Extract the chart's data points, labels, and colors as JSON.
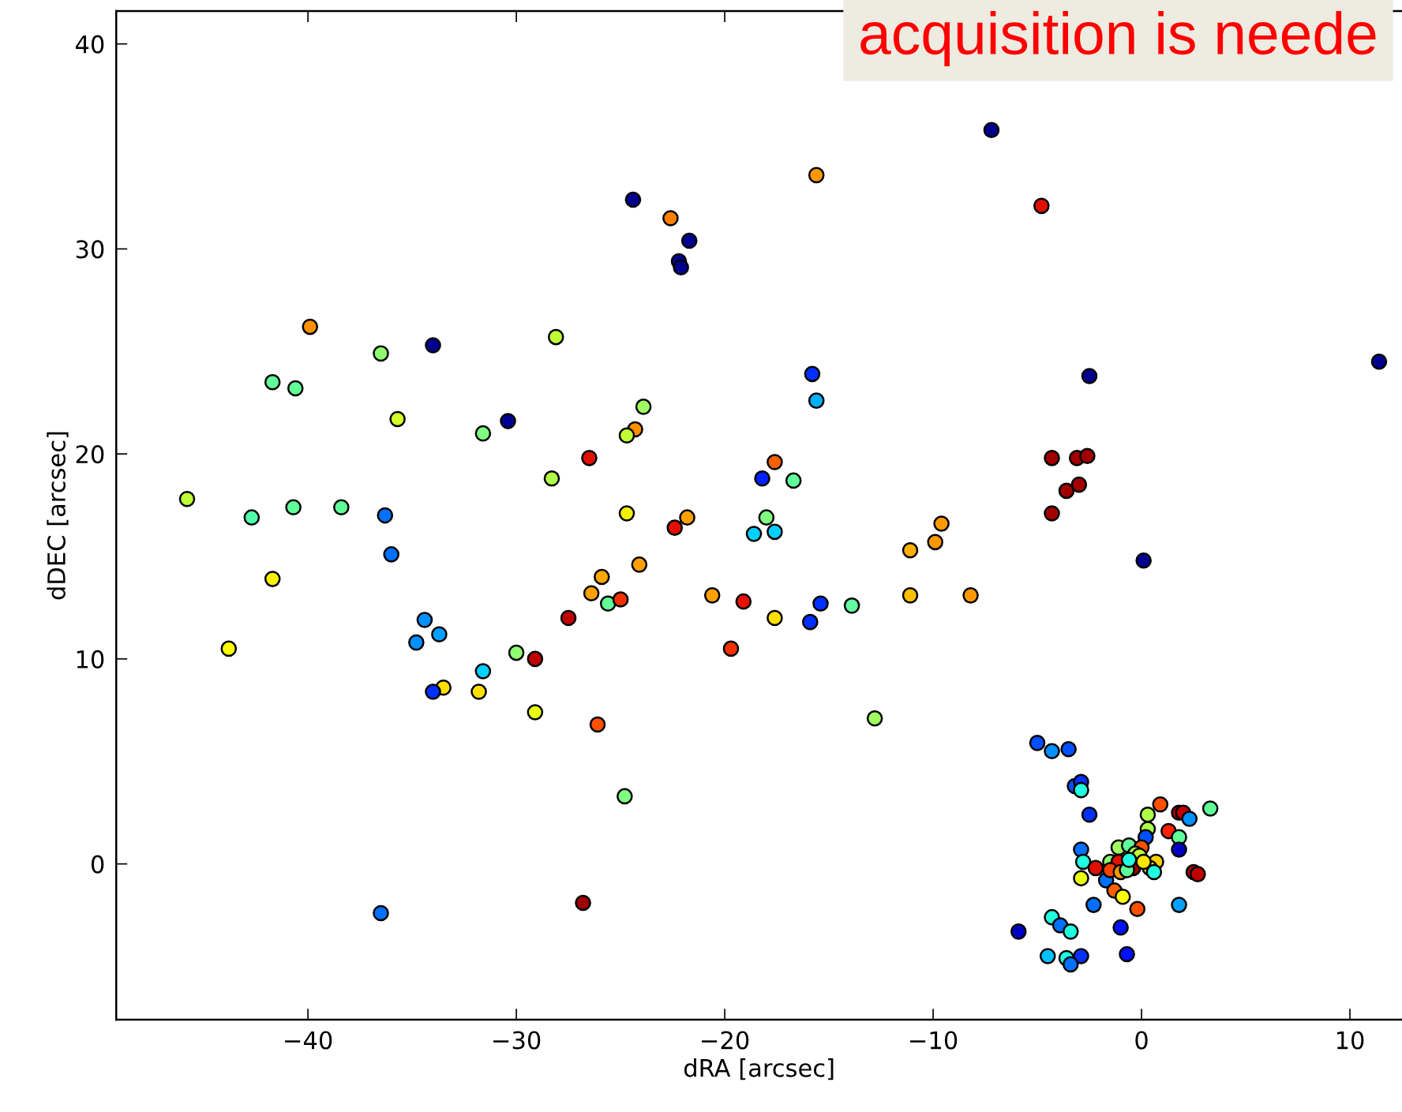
{
  "chart_data": {
    "type": "scatter",
    "xlabel": "dRA [arcsec]",
    "ylabel": "dDEC [arcsec]",
    "annotations": [
      "acquisition is neede"
    ],
    "xlim": [
      -49.2,
      12.5
    ],
    "ylim": [
      -7.6,
      41.6
    ],
    "xticks": [
      -40,
      -30,
      -20,
      -10,
      0,
      10
    ],
    "yticks": [
      0,
      10,
      20,
      30,
      40
    ],
    "grid": false,
    "legend": false,
    "marker": "circle",
    "series": [
      {
        "x": [
          -7.2,
          -15.6,
          -24.4,
          -22.6,
          -4.8,
          -21.7,
          -22.2,
          -22.1,
          -39.9,
          -28.1,
          -36.5,
          -34.0,
          -41.7,
          -40.6,
          -15.8,
          -15.6,
          -2.5,
          11.4,
          -35.7,
          -30.4,
          -31.6,
          -23.9,
          -24.3,
          -24.7,
          -26.5,
          -17.6,
          -18.2,
          -16.7,
          -4.3,
          -3.1,
          -2.6,
          -3.6,
          -3.0,
          -4.3,
          -45.8,
          -42.7,
          -40.7,
          -38.4,
          -36.3,
          -36.0,
          -28.3,
          -24.7,
          -22.4,
          -21.8,
          -18.0,
          -18.6,
          -17.6,
          -9.6,
          -11.1,
          -9.9,
          0.1,
          -41.7,
          -24.1,
          -25.9,
          -26.4,
          -25.6,
          -25.0,
          -27.5,
          -20.6,
          -19.1,
          -17.6,
          -15.4,
          -15.9,
          -13.9,
          -11.1,
          -8.2,
          -34.4,
          -34.8,
          -33.7,
          -43.8,
          -30.0,
          -29.1,
          -31.6,
          -33.5,
          -34.0,
          -31.8,
          -19.7,
          -29.1,
          -26.1,
          -12.8,
          -24.8,
          -36.5,
          -26.8,
          -5.0,
          -4.3,
          -3.5,
          -3.2,
          -2.9,
          -2.9,
          -2.5,
          0.9,
          0.3,
          0.3,
          0.2,
          1.8,
          2.0,
          2.3,
          3.3,
          1.3,
          1.8,
          1.8,
          -2.9,
          -2.8,
          -2.2,
          -2.9,
          -1.7,
          -1.3,
          -0.9,
          -0.2,
          -2.3,
          1.8,
          2.5,
          2.7,
          -1.0,
          -5.9,
          -4.3,
          -3.9,
          -3.4,
          -0.7,
          -4.5,
          -3.6,
          -2.9,
          -3.4,
          -1.1,
          -0.6,
          0.0,
          -0.3,
          -0.1,
          0.7,
          0.4,
          0.6,
          -1.5,
          -1.1,
          -1.5,
          -1.0,
          -0.4,
          -0.7,
          0.1,
          -0.6
        ],
        "values": [
          35.8,
          33.6,
          32.4,
          31.5,
          32.1,
          30.4,
          29.4,
          29.1,
          26.2,
          25.7,
          24.9,
          25.3,
          23.5,
          23.2,
          23.9,
          22.6,
          23.8,
          24.5,
          21.7,
          21.6,
          21.0,
          22.3,
          21.2,
          20.9,
          19.8,
          19.6,
          18.8,
          18.7,
          19.8,
          19.8,
          19.9,
          18.2,
          18.5,
          17.1,
          17.8,
          16.9,
          17.4,
          17.4,
          17.0,
          15.1,
          18.8,
          17.1,
          16.4,
          16.9,
          16.9,
          16.1,
          16.2,
          16.6,
          15.3,
          15.7,
          14.8,
          13.9,
          14.6,
          14.0,
          13.2,
          12.7,
          12.9,
          12.0,
          13.1,
          12.8,
          12.0,
          12.7,
          11.8,
          12.6,
          13.1,
          13.1,
          11.9,
          10.8,
          11.2,
          10.5,
          10.3,
          10.0,
          9.4,
          8.6,
          8.4,
          8.4,
          10.5,
          7.4,
          6.8,
          7.1,
          3.3,
          -2.4,
          -1.9,
          5.9,
          5.5,
          5.6,
          3.8,
          4.0,
          3.6,
          2.4,
          2.9,
          2.4,
          1.7,
          1.3,
          2.5,
          2.5,
          2.2,
          2.7,
          1.6,
          1.3,
          0.7,
          0.7,
          0.1,
          -0.2,
          -0.7,
          -0.8,
          -1.3,
          -1.6,
          -2.2,
          -2.0,
          -2.0,
          -0.4,
          -0.5,
          -3.1,
          -3.3,
          -2.6,
          -3.0,
          -3.3,
          -4.4,
          -4.5,
          -4.6,
          -4.5,
          -4.9,
          0.8,
          0.9,
          0.8,
          0.5,
          0.4,
          0.1,
          -0.2,
          -0.4,
          0.1,
          0.1,
          -0.3,
          -0.4,
          -0.2,
          -0.3,
          0.1,
          0.2
        ],
        "colors": [
          "#00008f",
          "#ff9800",
          "#00008f",
          "#ff8000",
          "#e01000",
          "#00008f",
          "#00008f",
          "#00008f",
          "#ff9000",
          "#c0ff36",
          "#90ff70",
          "#00008f",
          "#60ff98",
          "#60ff98",
          "#0030ff",
          "#00b0ff",
          "#00008f",
          "#00008f",
          "#d4ff2a",
          "#00008f",
          "#80ff80",
          "#a0ff60",
          "#ff9000",
          "#c0ff36",
          "#e01000",
          "#ff6000",
          "#0020ff",
          "#60ff98",
          "#a00000",
          "#a00000",
          "#a00000",
          "#a00000",
          "#a00000",
          "#a00000",
          "#c0ff36",
          "#50ffa8",
          "#60ff98",
          "#60ff98",
          "#0070ff",
          "#0070ff",
          "#b0ff48",
          "#f0f000",
          "#e01000",
          "#ffa000",
          "#80ff80",
          "#00d0ff",
          "#00d0ff",
          "#ff9800",
          "#ffb000",
          "#ff9800",
          "#00008f",
          "#f8f000",
          "#ffa000",
          "#ffa800",
          "#ffa000",
          "#60ff98",
          "#f03000",
          "#c00000",
          "#ffa000",
          "#e81000",
          "#ffe000",
          "#0030ff",
          "#0030ff",
          "#60ffa0",
          "#ffc000",
          "#ff9800",
          "#0090ff",
          "#0090ff",
          "#00a0ff",
          "#ffff00",
          "#90ff70",
          "#c00000",
          "#00d0ff",
          "#ffe000",
          "#0030ff",
          "#ffe000",
          "#f03000",
          "#e8ff10",
          "#ff5000",
          "#a0ff60",
          "#80ff80",
          "#0070ff",
          "#a00000",
          "#0050ff",
          "#0090ff",
          "#0050ff",
          "#0050ff",
          "#0030ff",
          "#20ffe0",
          "#0030ff",
          "#ff5000",
          "#b0ff48",
          "#b0ff48",
          "#0050ff",
          "#a00000",
          "#c00000",
          "#0090ff",
          "#60ff98",
          "#ff2000",
          "#60ff98",
          "#0000c0",
          "#0070ff",
          "#20ffe0",
          "#e01000",
          "#e8ff10",
          "#0070ff",
          "#ff6000",
          "#ffff00",
          "#ff5000",
          "#0070ff",
          "#00a0ff",
          "#a00000",
          "#c00000",
          "#0010ff",
          "#0000c0",
          "#20ffe0",
          "#0070ff",
          "#20ffe0",
          "#0010ff",
          "#00c0ff",
          "#20ffe0",
          "#0030ff",
          "#0070ff",
          "#a0ff60",
          "#60ff98",
          "#ff5000",
          "#b0ff48",
          "#c0ff36",
          "#ffd000",
          "#ffe000",
          "#20ffe0",
          "#90ff70",
          "#e81000",
          "#ff4000",
          "#ff9800",
          "#a00000",
          "#60ff98",
          "#ffe600",
          "#20ffe0"
        ]
      }
    ]
  }
}
